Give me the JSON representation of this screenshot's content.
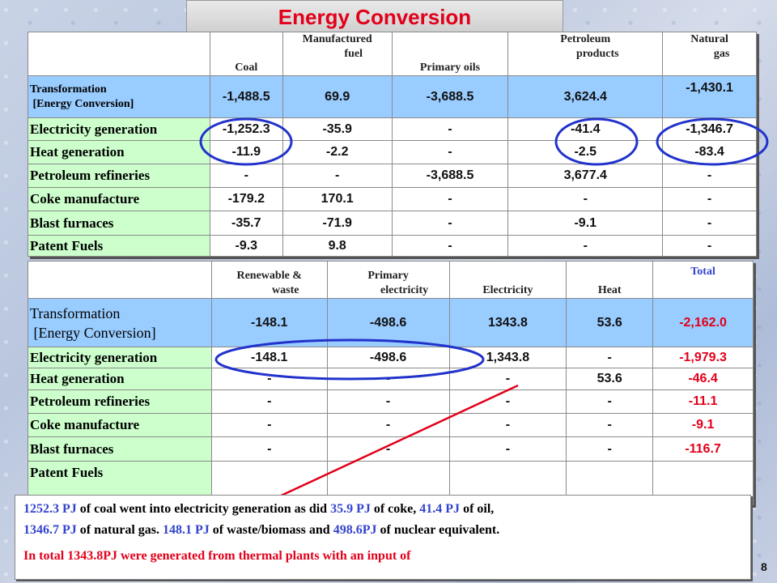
{
  "title": "Energy Conversion",
  "page_number": "8",
  "table1": {
    "headers": [
      {
        "line1": "",
        "line2": "Coal"
      },
      {
        "line1": "Manufactured",
        "line2": "fuel"
      },
      {
        "line1": "",
        "line2": "Primary oils"
      },
      {
        "line1": "Petroleum",
        "line2": "products"
      },
      {
        "line1": "Natural",
        "line2": "gas"
      }
    ],
    "transformation_label": [
      "Transformation",
      "[Energy Conversion]"
    ],
    "transformation_values": [
      "-1,488.5",
      "69.9",
      "-3,688.5",
      "3,624.4",
      "-1,430.1"
    ],
    "rows": [
      {
        "label": "Electricity generation",
        "values": [
          "-1,252.3",
          "-35.9",
          "-",
          "-41.4",
          "-1,346.7"
        ]
      },
      {
        "label": "Heat generation",
        "values": [
          "-11.9",
          "-2.2",
          "-",
          "-2.5",
          "-83.4"
        ]
      },
      {
        "label": "Petroleum refineries",
        "values": [
          "-",
          "-",
          "-3,688.5",
          "3,677.4",
          "-"
        ]
      },
      {
        "label": "Coke manufacture",
        "values": [
          "-179.2",
          "170.1",
          "-",
          "-",
          "-"
        ]
      },
      {
        "label": "Blast furnaces",
        "values": [
          "-35.7",
          "-71.9",
          "-",
          "-9.1",
          "-"
        ]
      },
      {
        "label": "Patent Fuels",
        "values": [
          "-9.3",
          "9.8",
          "-",
          "-",
          "-"
        ]
      }
    ]
  },
  "table2": {
    "headers": [
      {
        "line1": "Renewable &",
        "line2": "waste"
      },
      {
        "line1": "Primary",
        "line2": "electricity"
      },
      {
        "line1": "",
        "line2": "Electricity"
      },
      {
        "line1": "",
        "line2": "Heat"
      },
      {
        "line1": "Total",
        "line2": ""
      }
    ],
    "transformation_label": [
      "Transformation",
      "[Energy Conversion]"
    ],
    "transformation_values": [
      "-148.1",
      "-498.6",
      "1343.8",
      "53.6",
      "-2,162.0"
    ],
    "rows": [
      {
        "label": "Electricity generation",
        "values": [
          "-148.1",
          "-498.6",
          "1,343.8",
          "-",
          "-1,979.3"
        ]
      },
      {
        "label": "Heat generation",
        "values": [
          "-",
          "-",
          "-",
          "53.6",
          "-46.4"
        ]
      },
      {
        "label": "Petroleum refineries",
        "values": [
          "-",
          "-",
          "-",
          "-",
          "-11.1"
        ]
      },
      {
        "label": "Coke manufacture",
        "values": [
          "-",
          "-",
          "-",
          "-",
          "-9.1"
        ]
      },
      {
        "label": "Blast furnaces",
        "values": [
          "-",
          "-",
          "-",
          "-",
          "-116.7"
        ]
      },
      {
        "label": "Patent Fuels",
        "values": [
          "",
          "",
          "",
          "",
          ""
        ]
      }
    ]
  },
  "note": {
    "line1": [
      {
        "t": "1252.3 PJ",
        "c": "blue"
      },
      {
        "t": " of coal went into electricity generation as did ",
        "c": ""
      },
      {
        "t": "35.9 PJ",
        "c": "blue"
      },
      {
        "t": " of coke, ",
        "c": ""
      },
      {
        "t": "41.4 PJ",
        "c": "blue"
      },
      {
        "t": " of oil,",
        "c": ""
      }
    ],
    "line2": [
      {
        "t": "1346.7 PJ",
        "c": "blue"
      },
      {
        "t": " of natural gas. ",
        "c": ""
      },
      {
        "t": "148.1 PJ",
        "c": "blue"
      },
      {
        "t": " of waste/biomass and ",
        "c": ""
      },
      {
        "t": "498.6PJ",
        "c": "blue"
      },
      {
        "t": " of nuclear equivalent.",
        "c": ""
      }
    ],
    "line3": [
      {
        "t": "In total 1343.8PJ were generated from thermal plants with an input of",
        "c": "red"
      }
    ]
  },
  "colors": {
    "accent_red": "#e2001a",
    "blue_text": "#3344cc",
    "row_blue": "#99ccff",
    "row_green": "#ccffcc",
    "circle": "#2233cc"
  }
}
